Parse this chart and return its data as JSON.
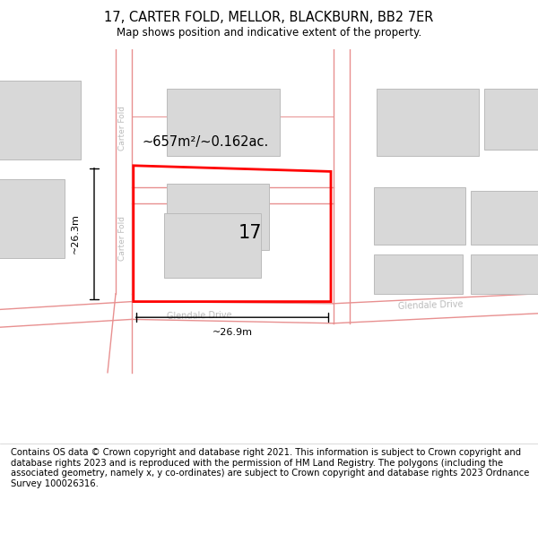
{
  "title": "17, CARTER FOLD, MELLOR, BLACKBURN, BB2 7ER",
  "subtitle": "Map shows position and indicative extent of the property.",
  "footer": "Contains OS data © Crown copyright and database right 2021. This information is subject to Crown copyright and database rights 2023 and is reproduced with the permission of HM Land Registry. The polygons (including the associated geometry, namely x, y co-ordinates) are subject to Crown copyright and database rights 2023 Ordnance Survey 100026316.",
  "area_label": "~657m²/~0.162ac.",
  "number_label": "17",
  "width_label": "~26.9m",
  "height_label": "~26.3m",
  "road_color": "#e89090",
  "building_color": "#d8d8d8",
  "building_edge": "#bbbbbb",
  "road_text_color": "#bbbbbb",
  "title_fontsize": 10.5,
  "subtitle_fontsize": 8.5,
  "footer_fontsize": 7.2
}
